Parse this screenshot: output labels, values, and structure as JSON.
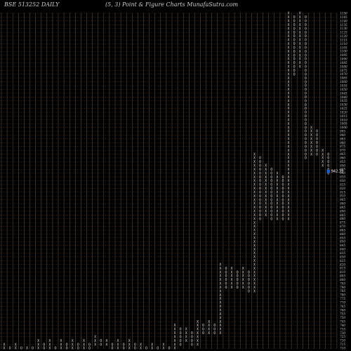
{
  "header": {
    "left": "BSE 513252  DAILY",
    "center": "(5,  3) Point & Figure    Charts MunafaSutra.com"
  },
  "chart_data": {
    "type": "point-and-figure",
    "box_size": 5,
    "reversal": 3,
    "y_range": [
      710,
      1150
    ],
    "y_ticks": [
      1150,
      1145,
      1140,
      1135,
      1130,
      1125,
      1120,
      1115,
      1110,
      1105,
      1100,
      1095,
      1090,
      1085,
      1080,
      1075,
      1070,
      1065,
      1060,
      1055,
      1050,
      1045,
      1040,
      1035,
      1030,
      1025,
      1020,
      1015,
      1010,
      1005,
      1000,
      995,
      990,
      985,
      980,
      975,
      970,
      965,
      960,
      955,
      950,
      945,
      940,
      935,
      930,
      925,
      920,
      915,
      910,
      905,
      900,
      895,
      890,
      885,
      880,
      875,
      870,
      865,
      860,
      855,
      850,
      845,
      840,
      835,
      830,
      825,
      820,
      815,
      810,
      805,
      800,
      795,
      790,
      785,
      780,
      775,
      770,
      765,
      760,
      755,
      750,
      745,
      740,
      735,
      730,
      725,
      720,
      715,
      710
    ],
    "columns": [
      {
        "type": "X",
        "low": 710,
        "high": 715
      },
      {
        "type": "O",
        "low": 710,
        "high": 710
      },
      {
        "type": "X",
        "low": 710,
        "high": 715
      },
      {
        "type": "O",
        "low": 710,
        "high": 710
      },
      {
        "type": "X",
        "low": 710,
        "high": 710
      },
      {
        "type": "O",
        "low": 710,
        "high": 710
      },
      {
        "type": "X",
        "low": 710,
        "high": 720
      },
      {
        "type": "O",
        "low": 710,
        "high": 715
      },
      {
        "type": "X",
        "low": 710,
        "high": 720
      },
      {
        "type": "O",
        "low": 710,
        "high": 710
      },
      {
        "type": "X",
        "low": 710,
        "high": 720
      },
      {
        "type": "O",
        "low": 710,
        "high": 715
      },
      {
        "type": "X",
        "low": 710,
        "high": 720
      },
      {
        "type": "O",
        "low": 710,
        "high": 715
      },
      {
        "type": "X",
        "low": 710,
        "high": 720
      },
      {
        "type": "O",
        "low": 710,
        "high": 715
      },
      {
        "type": "X",
        "low": 715,
        "high": 725
      },
      {
        "type": "O",
        "low": 715,
        "high": 720
      },
      {
        "type": "X",
        "low": 715,
        "high": 720
      },
      {
        "type": "O",
        "low": 710,
        "high": 715
      },
      {
        "type": "X",
        "low": 710,
        "high": 720
      },
      {
        "type": "O",
        "low": 710,
        "high": 715
      },
      {
        "type": "X",
        "low": 710,
        "high": 720
      },
      {
        "type": "O",
        "low": 710,
        "high": 715
      },
      {
        "type": "X",
        "low": 710,
        "high": 715
      },
      {
        "type": "O",
        "low": 710,
        "high": 710
      },
      {
        "type": "X",
        "low": 710,
        "high": 715
      },
      {
        "type": "O",
        "low": 710,
        "high": 710
      },
      {
        "type": "X",
        "low": 710,
        "high": 715
      },
      {
        "type": "O",
        "low": 710,
        "high": 710
      },
      {
        "type": "X",
        "low": 710,
        "high": 740
      },
      {
        "type": "O",
        "low": 715,
        "high": 735
      },
      {
        "type": "X",
        "low": 720,
        "high": 735
      },
      {
        "type": "O",
        "low": 715,
        "high": 730
      },
      {
        "type": "X",
        "low": 715,
        "high": 745
      },
      {
        "type": "O",
        "low": 730,
        "high": 740
      },
      {
        "type": "X",
        "low": 730,
        "high": 745
      },
      {
        "type": "O",
        "low": 730,
        "high": 740
      },
      {
        "type": "X",
        "low": 730,
        "high": 820
      },
      {
        "type": "O",
        "low": 790,
        "high": 815
      },
      {
        "type": "X",
        "low": 790,
        "high": 815
      },
      {
        "type": "O",
        "low": 790,
        "high": 810
      },
      {
        "type": "X",
        "low": 790,
        "high": 815
      },
      {
        "type": "O",
        "low": 785,
        "high": 810
      },
      {
        "type": "X",
        "low": 785,
        "high": 965
      },
      {
        "type": "O",
        "low": 880,
        "high": 960
      },
      {
        "type": "X",
        "low": 885,
        "high": 950
      },
      {
        "type": "O",
        "low": 880,
        "high": 945
      },
      {
        "type": "X",
        "low": 880,
        "high": 940
      },
      {
        "type": "O",
        "low": 880,
        "high": 935
      },
      {
        "type": "X",
        "low": 880,
        "high": 1150
      },
      {
        "type": "O",
        "low": 1070,
        "high": 1145
      },
      {
        "type": "X",
        "low": 1080,
        "high": 1150
      },
      {
        "type": "O",
        "low": 960,
        "high": 1145
      },
      {
        "type": "X",
        "low": 965,
        "high": 1000
      },
      {
        "type": "O",
        "low": 965,
        "high": 995
      },
      {
        "type": "X",
        "low": 950,
        "high": 970
      },
      {
        "type": "O",
        "low": 940,
        "high": 965
      }
    ],
    "last_price": {
      "value": 942.39,
      "label": "942.39"
    }
  }
}
